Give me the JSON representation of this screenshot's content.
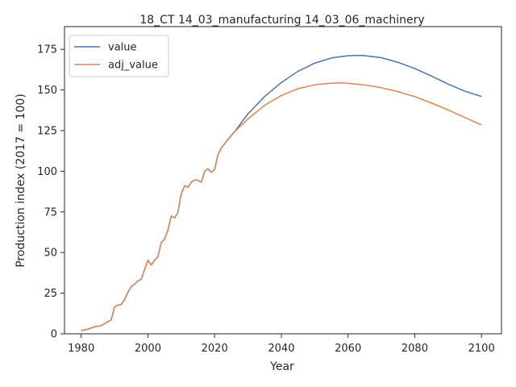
{
  "chart_data": {
    "type": "line",
    "title": "18_CT 14_03_manufacturing 14_03_06_machinery",
    "xlabel": "Year",
    "ylabel": "Production index (2017 = 100)",
    "xlim": [
      1975,
      2106
    ],
    "ylim": [
      0,
      189
    ],
    "xticks": [
      1980,
      2000,
      2020,
      2040,
      2060,
      2080,
      2100
    ],
    "yticks": [
      0,
      25,
      50,
      75,
      100,
      125,
      150,
      175
    ],
    "grid": false,
    "legend_position": "upper left",
    "series": [
      {
        "name": "value",
        "color": "#4c72b0",
        "points": [
          [
            1980,
            2
          ],
          [
            1982,
            2.8
          ],
          [
            1984,
            4.3
          ],
          [
            1986,
            5
          ],
          [
            1988,
            7.4
          ],
          [
            1989,
            8.5
          ],
          [
            1990,
            16.5
          ],
          [
            1991,
            17.6
          ],
          [
            1992,
            18.1
          ],
          [
            1993,
            21
          ],
          [
            1994,
            25.5
          ],
          [
            1995,
            29.1
          ],
          [
            1996,
            30.5
          ],
          [
            1997,
            32.6
          ],
          [
            1998,
            33.5
          ],
          [
            1999,
            39.5
          ],
          [
            2000,
            45.2
          ],
          [
            2001,
            42.3
          ],
          [
            2002,
            45.3
          ],
          [
            2003,
            47.5
          ],
          [
            2004,
            56.1
          ],
          [
            2005,
            58.2
          ],
          [
            2006,
            63.8
          ],
          [
            2007,
            72.5
          ],
          [
            2008,
            71.3
          ],
          [
            2009,
            74.7
          ],
          [
            2010,
            86.2
          ],
          [
            2011,
            91.1
          ],
          [
            2012,
            90.1
          ],
          [
            2013,
            93.3
          ],
          [
            2014,
            94.6
          ],
          [
            2015,
            94.6
          ],
          [
            2016,
            93.1
          ],
          [
            2017,
            100
          ],
          [
            2018,
            101.6
          ],
          [
            2019,
            99.3
          ],
          [
            2020,
            101.1
          ],
          [
            2021,
            110.1
          ],
          [
            2022,
            114.3
          ],
          [
            2024,
            119.6
          ],
          [
            2026,
            124.3
          ],
          [
            2028,
            129.9
          ],
          [
            2030,
            135.3
          ],
          [
            2035,
            146
          ],
          [
            2040,
            154.6
          ],
          [
            2045,
            161.5
          ],
          [
            2050,
            166.5
          ],
          [
            2055,
            169.7
          ],
          [
            2060,
            171.1
          ],
          [
            2064,
            171.3
          ],
          [
            2070,
            169.9
          ],
          [
            2075,
            167
          ],
          [
            2080,
            163.2
          ],
          [
            2085,
            158.6
          ],
          [
            2090,
            153.6
          ],
          [
            2095,
            149.3
          ],
          [
            2100,
            146
          ]
        ]
      },
      {
        "name": "adj_value",
        "color": "#dd8452",
        "points": [
          [
            1980,
            2
          ],
          [
            1982,
            2.8
          ],
          [
            1984,
            4.3
          ],
          [
            1986,
            5
          ],
          [
            1988,
            7.4
          ],
          [
            1989,
            8.5
          ],
          [
            1990,
            16.5
          ],
          [
            1991,
            17.6
          ],
          [
            1992,
            18.1
          ],
          [
            1993,
            21
          ],
          [
            1994,
            25.5
          ],
          [
            1995,
            29.1
          ],
          [
            1996,
            30.5
          ],
          [
            1997,
            32.6
          ],
          [
            1998,
            33.5
          ],
          [
            1999,
            39.5
          ],
          [
            2000,
            45.2
          ],
          [
            2001,
            42.3
          ],
          [
            2002,
            45.3
          ],
          [
            2003,
            47.5
          ],
          [
            2004,
            56.1
          ],
          [
            2005,
            58.2
          ],
          [
            2006,
            63.8
          ],
          [
            2007,
            72.5
          ],
          [
            2008,
            71.3
          ],
          [
            2009,
            74.7
          ],
          [
            2010,
            86.2
          ],
          [
            2011,
            91.1
          ],
          [
            2012,
            90.1
          ],
          [
            2013,
            93.3
          ],
          [
            2014,
            94.6
          ],
          [
            2015,
            94.6
          ],
          [
            2016,
            93.1
          ],
          [
            2017,
            100
          ],
          [
            2018,
            101.6
          ],
          [
            2019,
            99.3
          ],
          [
            2020,
            101.1
          ],
          [
            2021,
            110.1
          ],
          [
            2022,
            114.3
          ],
          [
            2024,
            119.6
          ],
          [
            2026,
            124.3
          ],
          [
            2028,
            128.3
          ],
          [
            2030,
            132.2
          ],
          [
            2035,
            140.6
          ],
          [
            2040,
            146.6
          ],
          [
            2045,
            150.8
          ],
          [
            2050,
            153.2
          ],
          [
            2055,
            154.2
          ],
          [
            2058,
            154.4
          ],
          [
            2060,
            154.1
          ],
          [
            2065,
            153.1
          ],
          [
            2070,
            151.4
          ],
          [
            2075,
            149
          ],
          [
            2080,
            145.9
          ],
          [
            2085,
            142
          ],
          [
            2090,
            137.7
          ],
          [
            2095,
            133.1
          ],
          [
            2100,
            128.5
          ]
        ]
      }
    ]
  }
}
